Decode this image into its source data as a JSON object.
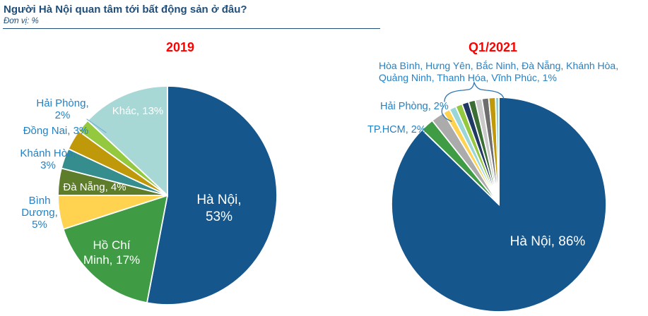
{
  "header": {
    "title": "Người Hà Nội quan tâm tới bất động sản ở đâu?",
    "subtitle": "Đơn vị: %"
  },
  "colors": {
    "header_blue": "#1F4E79",
    "chart_title_red": "#FF0000",
    "label_blue": "#2581C4",
    "hanoi_blue": "#15568C"
  },
  "chart_data": [
    {
      "type": "pie",
      "title": "2019",
      "unit": "%",
      "slices": [
        {
          "label": "Hà Nội",
          "value": 53,
          "color": "#15568C"
        },
        {
          "label": "Hồ Chí Minh",
          "value": 17,
          "color": "#3F9C45"
        },
        {
          "label": "Bình Dương",
          "value": 5,
          "color": "#FFD34F"
        },
        {
          "label": "Đà Nẵng",
          "value": 4,
          "color": "#5E7D2B"
        },
        {
          "label": "Khánh Hòa",
          "value": 3,
          "color": "#358D8D"
        },
        {
          "label": "Đồng Nai",
          "value": 3,
          "color": "#C0990B"
        },
        {
          "label": "Hải Phòng",
          "value": 2,
          "color": "#93C83F"
        },
        {
          "label": "Khác",
          "value": 13,
          "color": "#A8D8D6"
        }
      ],
      "labels": {
        "ha_noi": "Hà Nội, 53%",
        "ho_chi_minh": "Hồ Chí Minh, 17%",
        "binh_duong": "Bình Dương, 5%",
        "da_nang": "Đà Nẵng, 4%",
        "khanh_hoa": "Khánh Hòa, 3%",
        "dong_nai": "Đồng Nai, 3%",
        "hai_phong": "Hải Phòng, 2%",
        "khac": "Khác, 13%"
      }
    },
    {
      "type": "pie",
      "title": "Q1/2021",
      "unit": "%",
      "slices": [
        {
          "label": "Hà Nội",
          "value": 86,
          "color": "#15568C"
        },
        {
          "label": "TP.HCM",
          "value": 2,
          "color": "#3F9C45"
        },
        {
          "label": "Hải Phòng",
          "value": 2,
          "color": "#ABABAB"
        },
        {
          "label": "Hòa Bình",
          "value": 1,
          "color": "#FFD34F"
        },
        {
          "label": "Hưng Yên",
          "value": 1,
          "color": "#9AD6D8"
        },
        {
          "label": "Bắc Ninh",
          "value": 1,
          "color": "#93C83F"
        },
        {
          "label": "Đà Nẵng",
          "value": 1,
          "color": "#1F3864"
        },
        {
          "label": "Khánh Hòa",
          "value": 1,
          "color": "#3A6E35"
        },
        {
          "label": "Quảng Ninh",
          "value": 1,
          "color": "#C9C9C9"
        },
        {
          "label": "Thanh Hóa",
          "value": 1,
          "color": "#6E6E6E"
        },
        {
          "label": "Vĩnh Phúc",
          "value": 1,
          "color": "#C0990B"
        },
        {
          "label": "",
          "value": 0.5,
          "color": "#8FCBD4"
        }
      ],
      "labels": {
        "ha_noi": "Hà Nội, 86%",
        "tphcm": "TP.HCM, 2%",
        "hai_phong": "Hải Phòng, 2%",
        "group": "Hòa Bình, Hưng Yên, Bắc Ninh, Đà Nẵng, Khánh Hòa, Quảng Ninh, Thanh Hóa, Vĩnh Phúc, 1%"
      }
    }
  ]
}
